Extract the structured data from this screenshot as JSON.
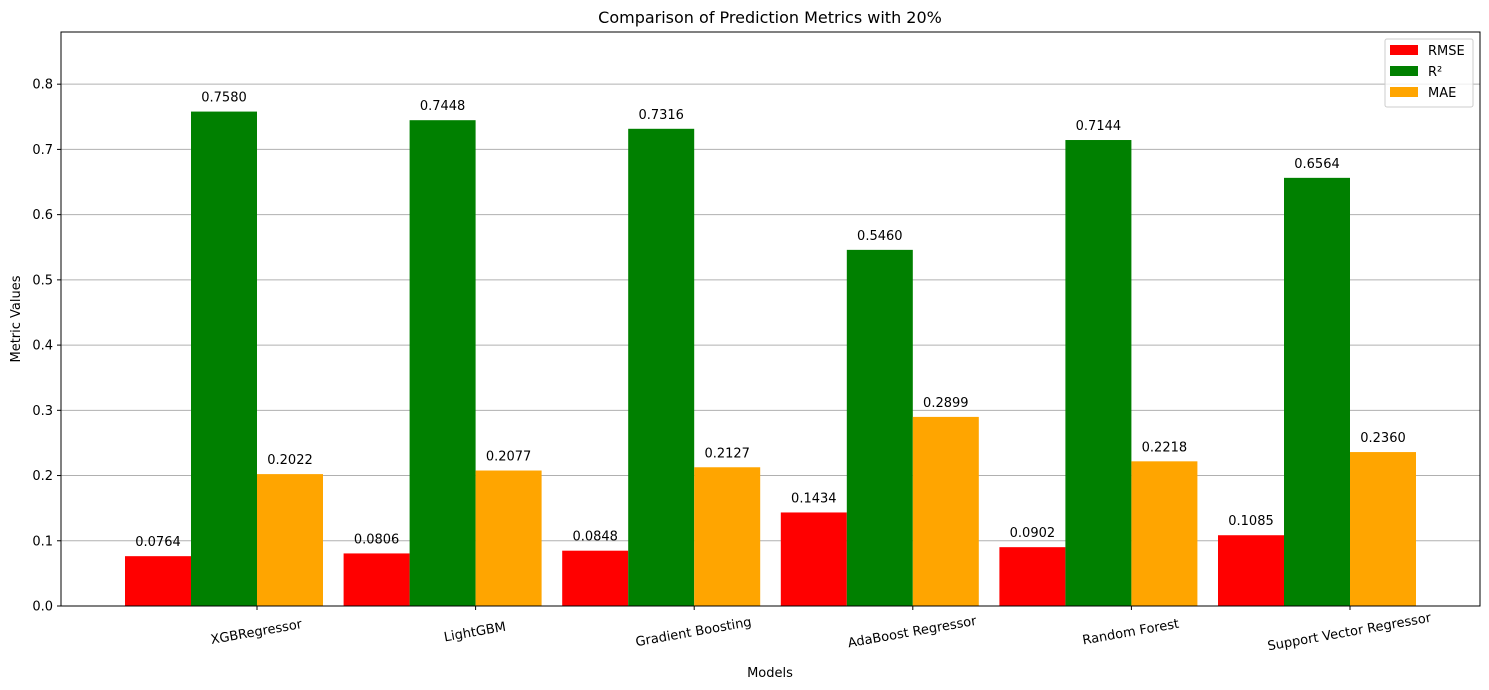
{
  "chart_data": {
    "type": "bar",
    "title": "Comparison of Prediction Metrics with 20%",
    "xlabel": "Models",
    "ylabel": "Metric Values",
    "categories": [
      "XGBRegressor",
      "LightGBM",
      "Gradient Boosting",
      "AdaBoost Regressor",
      "Random Forest",
      "Support Vector Regressor"
    ],
    "series": [
      {
        "name": "RMSE",
        "color": "#ff0000",
        "values": [
          0.0764,
          0.0806,
          0.0848,
          0.1434,
          0.0902,
          0.1085
        ]
      },
      {
        "name": "R²",
        "color": "#008000",
        "values": [
          0.758,
          0.7448,
          0.7316,
          0.546,
          0.7144,
          0.6564
        ]
      },
      {
        "name": "MAE",
        "color": "#ffa500",
        "values": [
          0.2022,
          0.2077,
          0.2127,
          0.2899,
          0.2218,
          0.236
        ]
      }
    ],
    "ylim": [
      0,
      0.88
    ],
    "yticks": [
      "0.0",
      "0.1",
      "0.2",
      "0.3",
      "0.4",
      "0.5",
      "0.6",
      "0.7",
      "0.8"
    ],
    "grid": "horizontal",
    "legend_position": "top-right",
    "value_label_format": "4 decimals",
    "xtick_rotation_deg": -10
  }
}
